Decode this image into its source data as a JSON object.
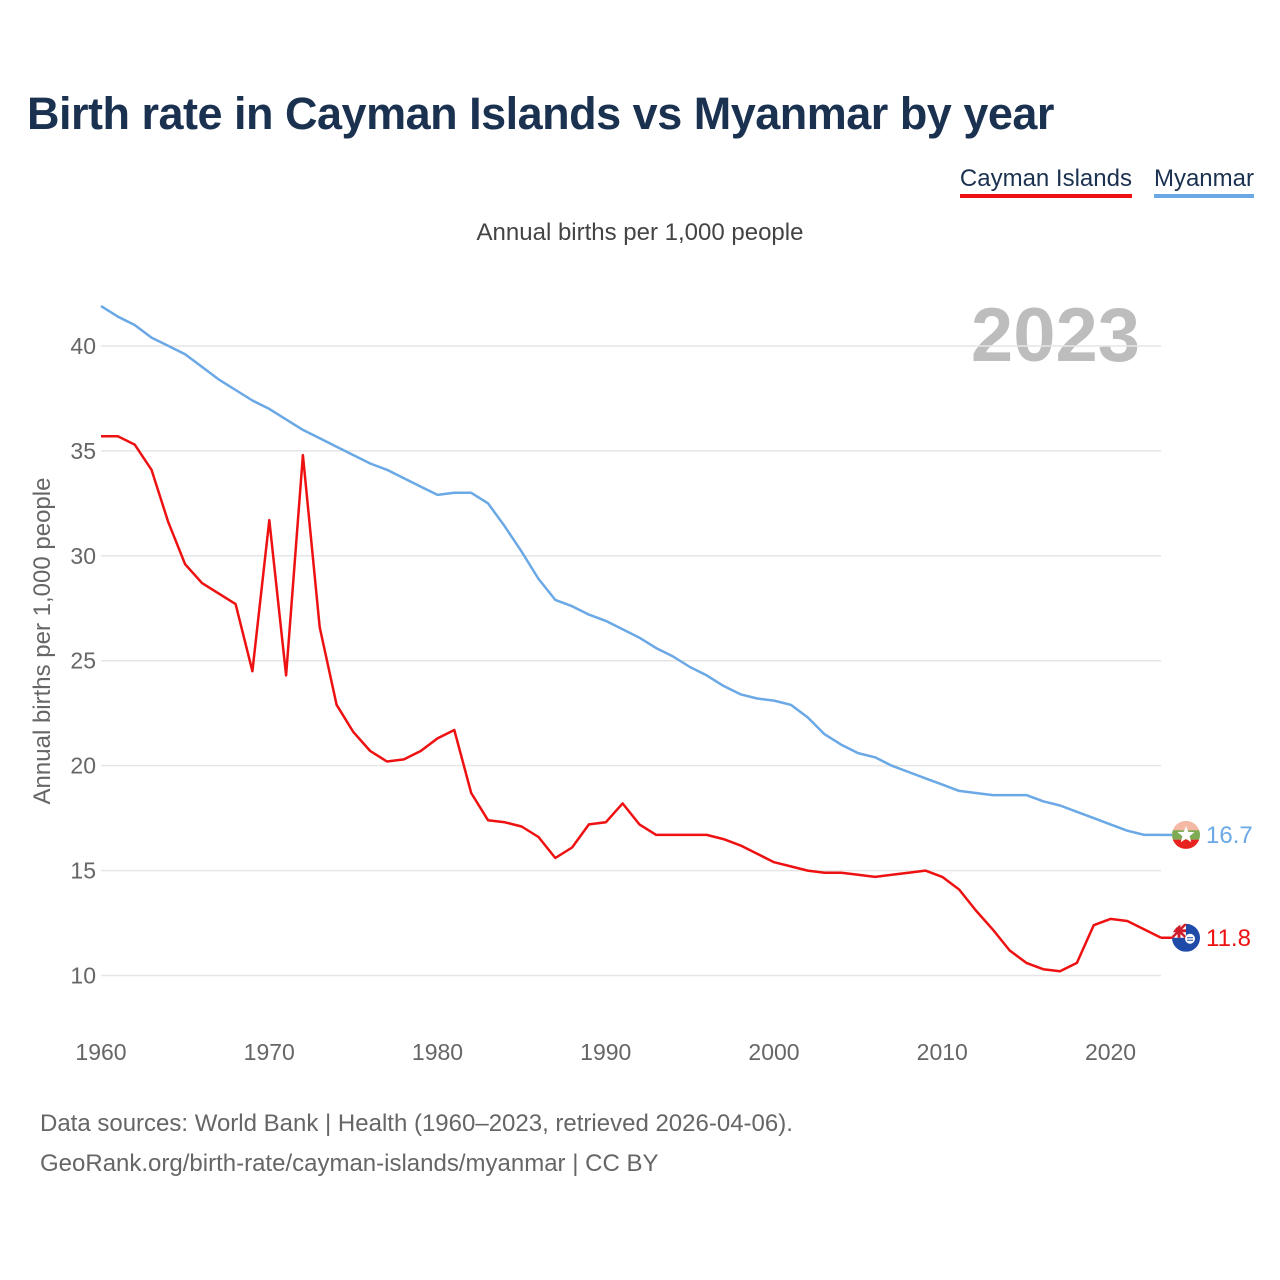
{
  "title": "Birth rate in Cayman Islands vs Myanmar by year",
  "footer": {
    "line1": "Data sources: World Bank | Health (1960–2023, retrieved 2026-04-06).",
    "line2": "GeoRank.org/birth-rate/cayman-islands/myanmar | CC BY"
  },
  "chart_data": {
    "type": "line",
    "title": "Birth rate in Cayman Islands vs Myanmar by year",
    "subtitle": "Annual births per 1,000 people",
    "xlabel": "",
    "ylabel": "Annual births per 1,000 people",
    "year_badge": "2023",
    "xlim": [
      1960,
      2023
    ],
    "ylim": [
      7.5,
      44
    ],
    "x_ticks": [
      1960,
      1970,
      1980,
      1990,
      2000,
      2010,
      2020
    ],
    "y_ticks": [
      10,
      15,
      20,
      25,
      30,
      35,
      40
    ],
    "grid": true,
    "legend_position": "top-right",
    "x": [
      1960,
      1961,
      1962,
      1963,
      1964,
      1965,
      1966,
      1967,
      1968,
      1969,
      1970,
      1971,
      1972,
      1973,
      1974,
      1975,
      1976,
      1977,
      1978,
      1979,
      1980,
      1981,
      1982,
      1983,
      1984,
      1985,
      1986,
      1987,
      1988,
      1989,
      1990,
      1991,
      1992,
      1993,
      1994,
      1995,
      1996,
      1997,
      1998,
      1999,
      2000,
      2001,
      2002,
      2003,
      2004,
      2005,
      2006,
      2007,
      2008,
      2009,
      2010,
      2011,
      2012,
      2013,
      2014,
      2015,
      2016,
      2017,
      2018,
      2019,
      2020,
      2021,
      2022,
      2023
    ],
    "series": [
      {
        "name": "Cayman Islands",
        "color": "#ee1111",
        "end_label": "11.8",
        "flag": "cayman-flag-icon",
        "values": [
          35.7,
          35.7,
          35.3,
          34.1,
          31.6,
          29.6,
          28.7,
          28.2,
          27.7,
          24.5,
          31.7,
          24.3,
          34.8,
          26.6,
          22.9,
          21.6,
          20.7,
          20.2,
          20.3,
          20.7,
          21.3,
          21.7,
          18.7,
          17.4,
          17.3,
          17.1,
          16.6,
          15.6,
          16.1,
          17.2,
          17.3,
          18.2,
          17.2,
          16.7,
          16.7,
          16.7,
          16.7,
          16.5,
          16.2,
          15.8,
          15.4,
          15.2,
          15.0,
          14.9,
          14.9,
          14.8,
          14.7,
          14.8,
          14.9,
          15.0,
          14.7,
          14.1,
          13.1,
          12.2,
          11.2,
          10.6,
          10.3,
          10.2,
          10.6,
          12.4,
          12.7,
          12.6,
          12.2,
          11.8
        ]
      },
      {
        "name": "Myanmar",
        "color": "#6aa8e6",
        "end_label": "16.7",
        "flag": "myanmar-flag-icon",
        "values": [
          41.9,
          41.4,
          41.0,
          40.4,
          40.0,
          39.6,
          39.0,
          38.4,
          37.9,
          37.4,
          37.0,
          36.5,
          36.0,
          35.6,
          35.2,
          34.8,
          34.4,
          34.1,
          33.7,
          33.3,
          32.9,
          33.0,
          33.0,
          32.5,
          31.4,
          30.2,
          28.9,
          27.9,
          27.6,
          27.2,
          26.9,
          26.5,
          26.1,
          25.6,
          25.2,
          24.7,
          24.3,
          23.8,
          23.4,
          23.2,
          23.1,
          22.9,
          22.3,
          21.5,
          21.0,
          20.6,
          20.4,
          20.0,
          19.7,
          19.4,
          19.1,
          18.8,
          18.7,
          18.6,
          18.6,
          18.6,
          18.3,
          18.1,
          17.8,
          17.5,
          17.2,
          16.9,
          16.7,
          16.7
        ]
      }
    ]
  }
}
